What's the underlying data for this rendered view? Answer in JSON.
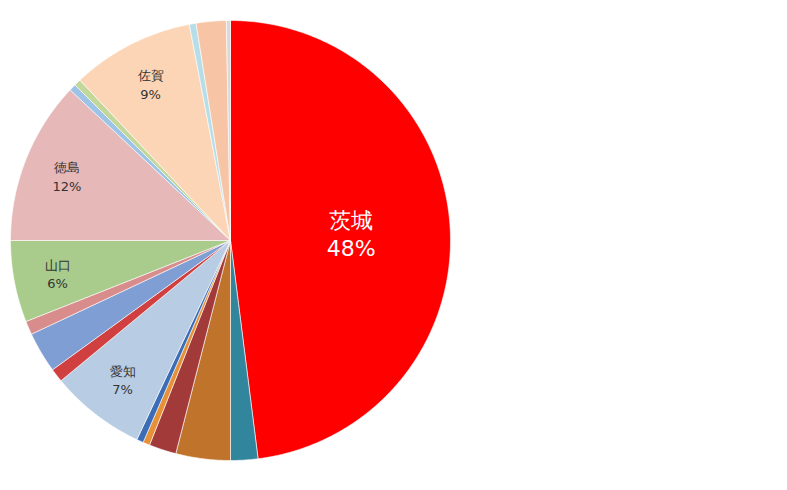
{
  "chart_data": {
    "type": "pie",
    "categories": [
      "茨城",
      null,
      null,
      null,
      null,
      null,
      "愛知",
      null,
      null,
      null,
      "山口",
      "徳島",
      null,
      null,
      "佐賀",
      null,
      null,
      null
    ],
    "values": [
      48,
      2,
      4,
      2,
      0.5,
      0.5,
      7,
      1,
      3,
      1,
      6,
      12,
      0.5,
      0.5,
      9,
      0.5,
      2.2,
      0.3
    ],
    "value_labels": [
      "48%",
      null,
      null,
      null,
      null,
      null,
      "7%",
      null,
      null,
      null,
      "6%",
      "12%",
      null,
      null,
      "9%",
      null,
      null,
      null
    ],
    "colors": [
      "#ff0000",
      "#31859c",
      "#c0732b",
      "#a33a3a",
      "#e69138",
      "#3a6db5",
      "#b8cce4",
      "#d04040",
      "#7f9fd4",
      "#d98c8c",
      "#a9cc8c",
      "#e6b8b8",
      "#9dc3e6",
      "#c4d79b",
      "#fbd5b5",
      "#b7dee8",
      "#f7c4a5",
      "#d9d9d9"
    ],
    "data_labels": true
  }
}
